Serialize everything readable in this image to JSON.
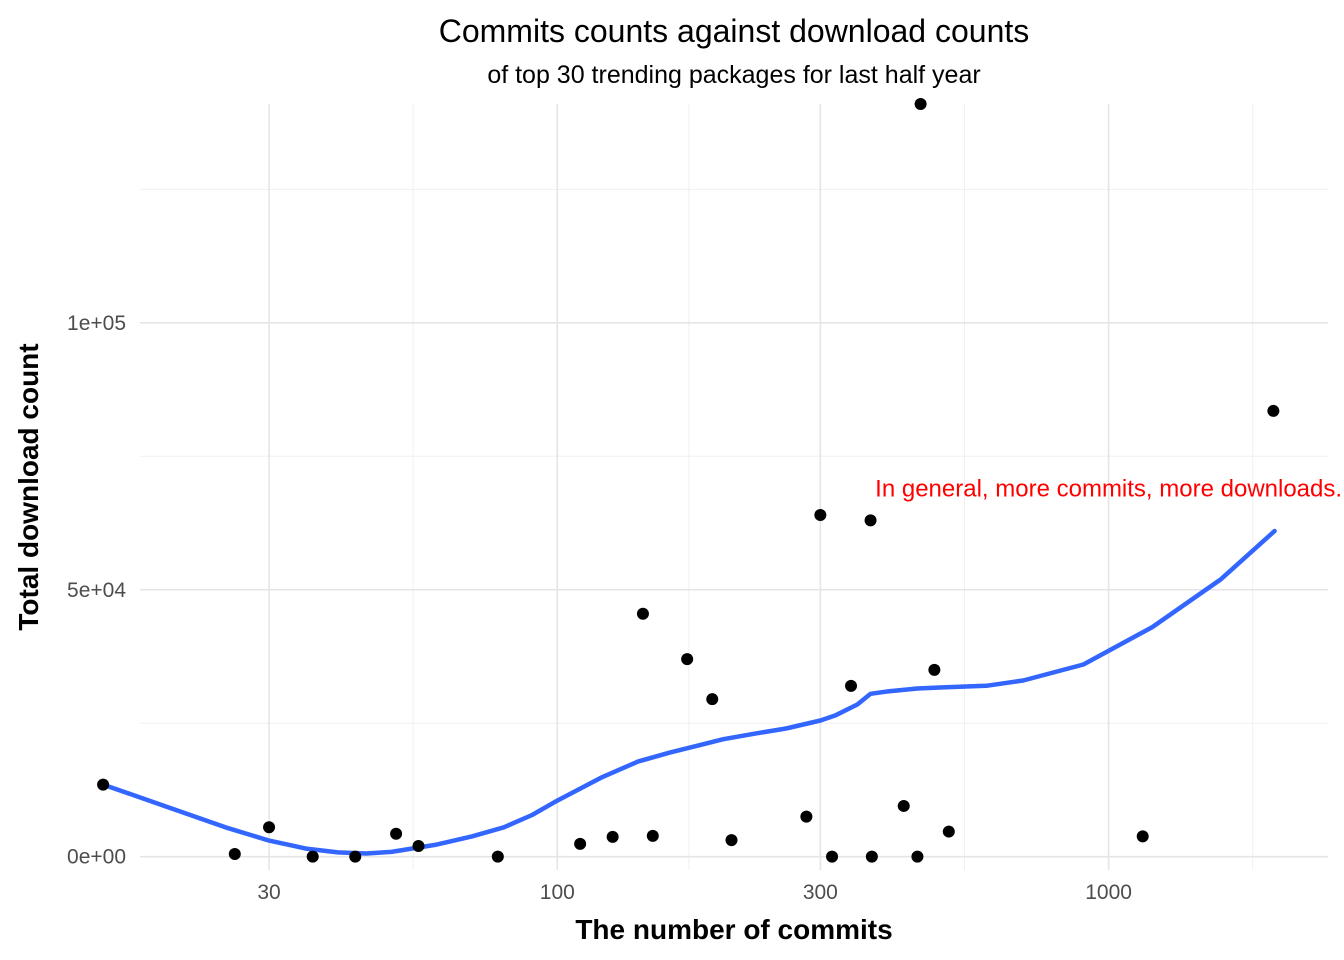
{
  "chart_data": {
    "type": "scatter",
    "title": "Commits counts against download counts",
    "subtitle": "of top 30 trending packages for last half year",
    "xlabel": "The number of commits",
    "ylabel": "Total download count",
    "x_scale": "log10",
    "xlim": [
      17.5,
      2500
    ],
    "ylim": [
      -2500,
      141000
    ],
    "x_ticks": [
      30,
      100,
      300,
      1000
    ],
    "x_tick_labels": [
      "30",
      "100",
      "300",
      "1000"
    ],
    "y_ticks": [
      0,
      50000,
      100000
    ],
    "y_tick_labels": [
      "0e+00",
      "5e+04",
      "1e+05"
    ],
    "grid": true,
    "legend": "none",
    "colors": {
      "points": "#000000",
      "smooth": "#3366FF",
      "annotation": "#FF0000"
    },
    "points": {
      "x": [
        15,
        26,
        30,
        36,
        43,
        51,
        56,
        78,
        110,
        126,
        143,
        149,
        172,
        191,
        207,
        283,
        300,
        315,
        341,
        370,
        372,
        425,
        450,
        456,
        483,
        513,
        1153,
        1990
      ],
      "y": [
        13500,
        500,
        5500,
        0,
        0,
        4300,
        2000,
        0,
        2400,
        3700,
        45500,
        3900,
        37000,
        29500,
        3100,
        7500,
        64000,
        0,
        32000,
        63000,
        0,
        9500,
        0,
        141000,
        35000,
        4700,
        3800,
        83500
      ]
    },
    "smooth": {
      "name": "",
      "x": [
        15,
        20,
        25,
        30,
        35,
        40,
        45,
        50,
        60,
        70,
        80,
        90,
        100,
        120,
        140,
        160,
        180,
        200,
        230,
        260,
        300,
        320,
        350,
        370,
        400,
        450,
        500,
        600,
        700,
        900,
        1200,
        1600,
        2000
      ],
      "y": [
        13500,
        9000,
        5500,
        3000,
        1500,
        800,
        600,
        900,
        2200,
        3800,
        5500,
        7800,
        10500,
        14800,
        17800,
        19500,
        20800,
        22000,
        23100,
        24000,
        25500,
        26500,
        28500,
        30500,
        31000,
        31500,
        31700,
        32000,
        33000,
        36000,
        43000,
        52000,
        61000
      ]
    },
    "annotations": [
      {
        "text": "In general, more commits, more downloads.",
        "x": 1000,
        "y": 69000,
        "color": "#FF0000"
      }
    ]
  }
}
